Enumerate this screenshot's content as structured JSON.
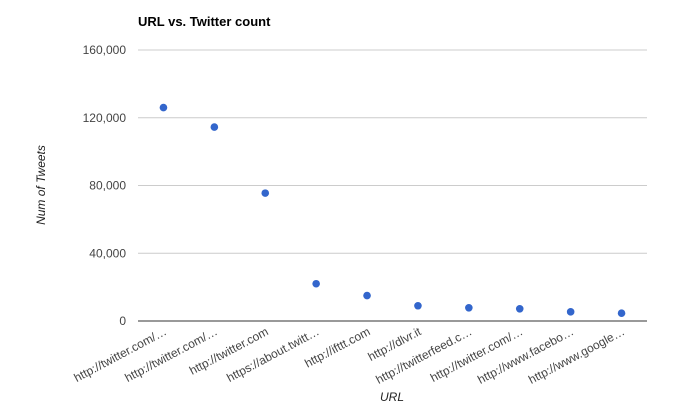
{
  "chart_data": {
    "type": "scatter",
    "title": "URL vs. Twitter count",
    "xlabel": "URL",
    "ylabel": "Num of Tweets",
    "ylim": [
      0,
      160000
    ],
    "y_ticks": [
      0,
      40000,
      80000,
      120000,
      160000
    ],
    "y_tick_labels": [
      "0",
      "40,000",
      "80,000",
      "120,000",
      "160,000"
    ],
    "grid": true,
    "legend": "none",
    "categories": [
      "http://twitter.com/…",
      "http://twitter.com/…",
      "http://twitter.com",
      "https://about.twitt…",
      "http://ifttt.com",
      "http://dlvr.it",
      "http://twitterfeed.c…",
      "http://twitter.com/…",
      "http://www.facebo…",
      "http://www.google…"
    ],
    "series": [
      {
        "values": [
          126000,
          114500,
          75500,
          22000,
          15000,
          9000,
          7800,
          7200,
          5400,
          4600
        ]
      }
    ],
    "colors": {
      "point": "#3366cc",
      "grid": "#cccccc",
      "baseline": "#333333"
    }
  }
}
